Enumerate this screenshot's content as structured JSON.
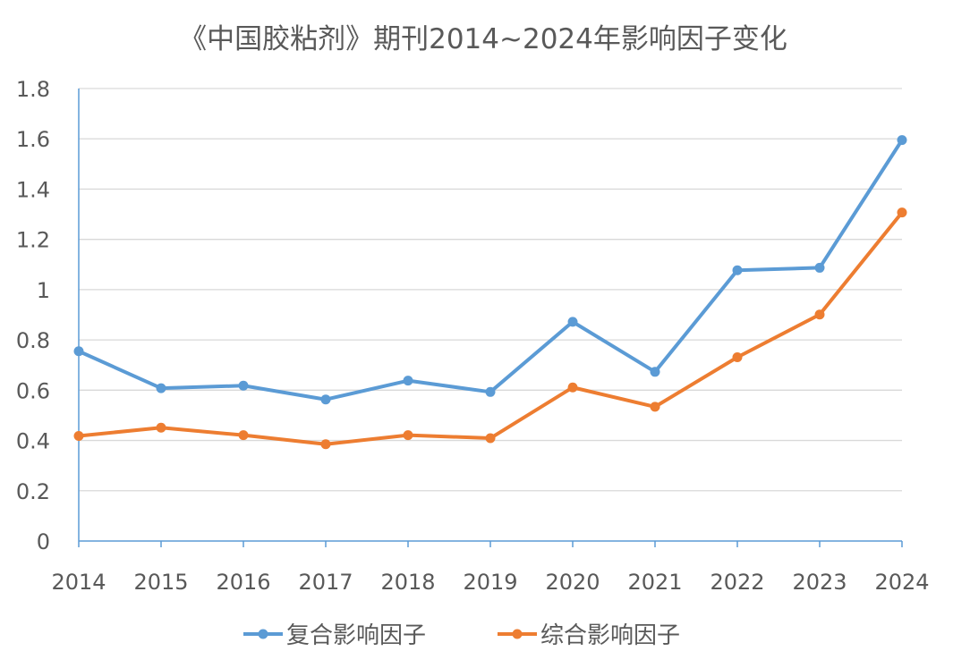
{
  "chart_data": {
    "type": "line",
    "title": "《中国胶粘剂》期刊2014~2024年影响因子变化",
    "xlabel": "",
    "ylabel": "",
    "categories": [
      "2014",
      "2015",
      "2016",
      "2017",
      "2018",
      "2019",
      "2020",
      "2021",
      "2022",
      "2023",
      "2024"
    ],
    "series": [
      {
        "name": "复合影响因子",
        "color": "#5b9bd5",
        "values": [
          0.755,
          0.608,
          0.618,
          0.563,
          0.638,
          0.593,
          0.872,
          0.673,
          1.077,
          1.087,
          1.595
        ]
      },
      {
        "name": "综合影响因子",
        "color": "#ed7d31",
        "values": [
          0.418,
          0.451,
          0.421,
          0.385,
          0.421,
          0.409,
          0.611,
          0.534,
          0.731,
          0.901,
          1.307
        ]
      }
    ],
    "ylim": [
      0,
      1.8
    ],
    "yticks": [
      "0",
      "0.2",
      "0.4",
      "0.6",
      "0.8",
      "1",
      "1.2",
      "1.4",
      "1.6",
      "1.8"
    ],
    "grid": true,
    "legend": "bottom"
  }
}
